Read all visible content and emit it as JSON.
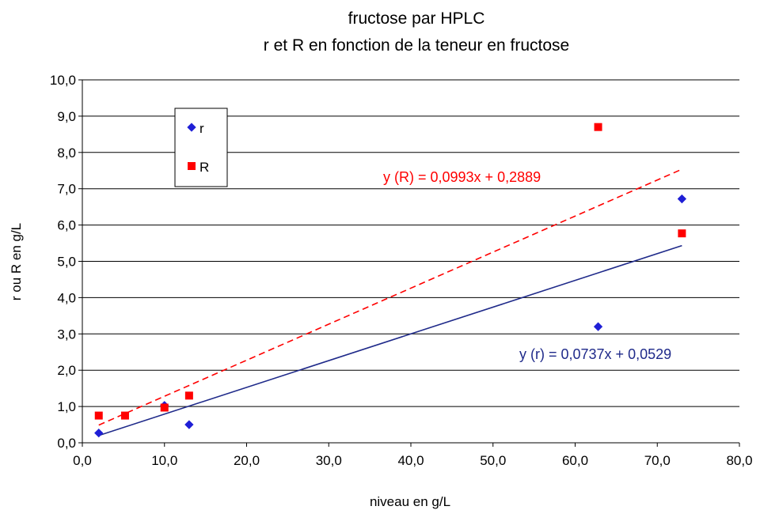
{
  "chart_data": {
    "type": "scatter",
    "title": "fructose par HPLC",
    "subtitle": "r et R en fonction de la teneur en fructose",
    "xlabel": "niveau en g/L",
    "ylabel": "r ou R en g/L",
    "xlim": [
      0,
      80
    ],
    "ylim": [
      0,
      10
    ],
    "xticks": [
      "0,0",
      "10,0",
      "20,0",
      "30,0",
      "40,0",
      "50,0",
      "60,0",
      "70,0",
      "80,0"
    ],
    "yticks": [
      "0,0",
      "1,0",
      "2,0",
      "3,0",
      "4,0",
      "5,0",
      "6,0",
      "7,0",
      "8,0",
      "9,0",
      "10,0"
    ],
    "grid": "horizontal",
    "legend_position": "top-left",
    "series": [
      {
        "name": "r",
        "color": "#1f1fd6",
        "marker": "diamond",
        "points": [
          [
            2,
            0.27
          ],
          [
            10,
            1.03
          ],
          [
            13,
            0.5
          ],
          [
            62.8,
            3.2
          ],
          [
            73,
            6.72
          ]
        ],
        "trendline": {
          "slope": 0.0737,
          "intercept": 0.0529,
          "x_range": [
            2,
            73
          ],
          "color": "#1f2a8a",
          "style": "solid",
          "label": "y (r) = 0,0737x + 0,0529"
        }
      },
      {
        "name": "R",
        "color": "#ff0000",
        "marker": "square",
        "points": [
          [
            2,
            0.75
          ],
          [
            5.2,
            0.75
          ],
          [
            10,
            0.97
          ],
          [
            13,
            1.3
          ],
          [
            62.8,
            8.7
          ],
          [
            73,
            5.77
          ]
        ],
        "trendline": {
          "slope": 0.0993,
          "intercept": 0.2889,
          "x_range": [
            2,
            73
          ],
          "color": "#ff0000",
          "style": "dashed",
          "label": "y (R) = 0,0993x + 0,2889"
        }
      }
    ]
  }
}
